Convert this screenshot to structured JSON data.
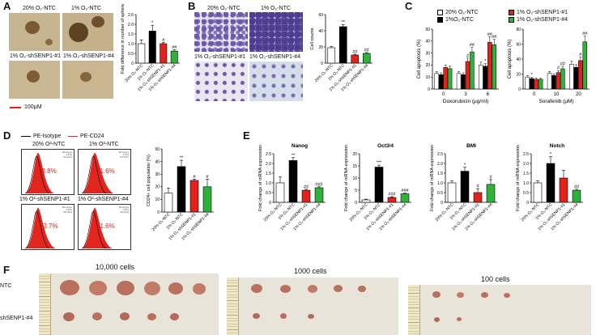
{
  "panels": {
    "A": {
      "letter": "A",
      "captions": [
        "20% O₂-NTC",
        "1% O₂-NTC",
        "1% O₂-shSENP1-#1",
        "1% O₂-shSENP1-#4"
      ],
      "scale_bar": "100μM"
    },
    "B": {
      "letter": "B",
      "captions": [
        "20% O₂-NTC",
        "1% O₂-NTC",
        "1% O₂-shSENP1-#1",
        "1% O₂-shSENP1-#4"
      ]
    },
    "C": {
      "letter": "C",
      "legend": [
        "20% O₂-NTC",
        "1%O₂-NTC",
        "1% O₂-shSENP1-#1",
        "1% O₂-shSENP1-#4"
      ]
    },
    "D": {
      "letter": "D",
      "legend": [
        "PE-Isotype",
        "PE-CD24"
      ],
      "captions": [
        "20% O²-NTC",
        "1% O²-NTC",
        "1% O²-shSENP1-#1",
        "1% O²-shSENP1-#4"
      ],
      "percentages": [
        "13.8%",
        "31.6%",
        "23.7%",
        "21.6%"
      ],
      "inset_text": [
        "PE-Isotype",
        "0.51%",
        "PE-CD24"
      ]
    },
    "E": {
      "letter": "E"
    },
    "F": {
      "letter": "F",
      "titles": [
        "10,000 cells",
        "1000 cells",
        "100 cells"
      ],
      "rows": [
        "NTC",
        "shSENP1-#4"
      ]
    }
  },
  "colors": {
    "ntc20": "#ffffff",
    "ntc1": "#000000",
    "sh1": "#e3231b",
    "sh4": "#2fb23a",
    "flow_fill": "#e0261f",
    "crystal_violet": "#6a5aa8",
    "tumor": "#b8715e"
  },
  "chart_data": [
    {
      "id": "A-bar",
      "type": "bar",
      "categories": [
        "20% O₂-NTC",
        "1% O₂-NTC",
        "1% O₂-shSENP1-#1",
        "1% O₂-shSENP1-#4"
      ],
      "values": [
        1.0,
        1.65,
        1.0,
        0.62
      ],
      "errors": [
        0.2,
        0.3,
        0.06,
        0.06
      ],
      "marks": [
        "",
        "*",
        "#",
        "##"
      ],
      "ylabel": "Fold difference in number of sphere",
      "ylim": [
        0,
        2.5
      ],
      "yticks": [
        0,
        0.5,
        1.0,
        1.5,
        2.0,
        2.5
      ]
    },
    {
      "id": "B-bar",
      "type": "bar",
      "categories": [
        "20% O₂-NTC",
        "1% O₂-NTC",
        "1% O₂-shSENP1-#1",
        "1% O₂-shSENP1-#4"
      ],
      "values": [
        19,
        45,
        10,
        12
      ],
      "errors": [
        1.5,
        2.5,
        1.0,
        1.0
      ],
      "marks": [
        "",
        "**",
        "##",
        "##"
      ],
      "ylabel": "Cell counts",
      "ylim": [
        0,
        60
      ],
      "yticks": [
        0,
        20,
        40,
        60
      ]
    },
    {
      "id": "C-dox",
      "type": "bar",
      "groups": [
        "0",
        "3",
        "6"
      ],
      "series": [
        {
          "name": "20% O₂-NTC",
          "values": [
            13,
            13,
            20
          ]
        },
        {
          "name": "1%O₂-NTC",
          "values": [
            12,
            12,
            19
          ]
        },
        {
          "name": "1% O₂-shSENP1-#1",
          "values": [
            18,
            23,
            39
          ]
        },
        {
          "name": "1% O₂-shSENP1-#4",
          "values": [
            17,
            31,
            37
          ]
        }
      ],
      "marks": [
        [
          "",
          "",
          "",
          ""
        ],
        [
          "",
          "",
          "#",
          "##"
        ],
        [
          "",
          "*",
          "##",
          "##"
        ]
      ],
      "xlabel": "Doxorubicin (μg/ml)",
      "ylabel": "Cell apoptosis (%)",
      "ylim": [
        0,
        50
      ],
      "yticks": [
        0,
        10,
        20,
        30,
        40,
        50
      ]
    },
    {
      "id": "C-sor",
      "type": "bar",
      "groups": [
        "0",
        "10",
        "20"
      ],
      "series": [
        {
          "name": "20% O₂-NTC",
          "values": [
            16,
            21,
            33
          ]
        },
        {
          "name": "1%O₂-NTC",
          "values": [
            14,
            18,
            29
          ]
        },
        {
          "name": "1% O₂-shSENP1-#1",
          "values": [
            13,
            22,
            38
          ]
        },
        {
          "name": "1% O₂-shSENP1-#4",
          "values": [
            13,
            27,
            63
          ]
        }
      ],
      "marks": [
        [
          "",
          "*",
          "",
          ""
        ],
        [
          "",
          "",
          "#",
          "##"
        ],
        [
          "",
          "",
          "#",
          "##"
        ]
      ],
      "xlabel": "Sorafenib (μM)",
      "ylabel": "Cell apoptosis (%)",
      "ylim": [
        0,
        80
      ],
      "yticks": [
        0,
        20,
        40,
        60,
        80
      ]
    },
    {
      "id": "D-bar",
      "type": "bar",
      "categories": [
        "20% O₂-NTC",
        "1% O₂-NTC",
        "1% O₂-shSENP1-#1",
        "1% O₂-shSENP1-#4"
      ],
      "values": [
        15,
        36,
        25,
        20
      ],
      "errors": [
        4,
        5,
        1,
        6
      ],
      "marks": [
        "",
        "**",
        "#",
        "#"
      ],
      "ylabel": "CD24+ cell population (%)",
      "ylim": [
        0,
        50
      ],
      "yticks": [
        0,
        10,
        20,
        30,
        40,
        50
      ]
    },
    {
      "id": "E-nanog",
      "type": "bar",
      "title": "Nanog",
      "categories": [
        "20% O₂-NTC",
        "1% O₂-NTC",
        "1% O₂-shSENP1-#1",
        "1% O₂-shSENP1-#4"
      ],
      "values": [
        1.0,
        2.15,
        0.62,
        0.75
      ],
      "errors": [
        0.3,
        0.15,
        0.05,
        0.05
      ],
      "marks": [
        "",
        "**",
        "##",
        "###"
      ],
      "ylabel": "Fold change of mRNA expression",
      "ylim": [
        0,
        2.5
      ],
      "yticks": [
        0,
        0.5,
        1.0,
        1.5,
        2.0,
        2.5
      ]
    },
    {
      "id": "E-oct",
      "type": "bar",
      "title": "Oct3/4",
      "categories": [
        "20% O₂-NTC",
        "1% O₂-NTC",
        "1% O₂-shSENP1-#1",
        "1% O₂-shSENP1-#4"
      ],
      "values": [
        1.0,
        14.5,
        2.0,
        3.5
      ],
      "errors": [
        0.3,
        0.8,
        0.3,
        0.3
      ],
      "marks": [
        "",
        "***",
        "###",
        "###"
      ],
      "ylabel": "Fold change of mRNA expression",
      "ylim": [
        0,
        20
      ],
      "yticks": [
        0,
        5,
        10,
        15,
        20
      ]
    },
    {
      "id": "E-bmi",
      "type": "bar",
      "title": "BMI",
      "categories": [
        "20% O₂-NTC",
        "1% O₂-NTC",
        "1% O₂-shSENP1-#1",
        "1% O₂-shSENP1-#4"
      ],
      "values": [
        1.0,
        1.6,
        0.5,
        0.92
      ],
      "errors": [
        0.1,
        0.2,
        0.2,
        0.25
      ],
      "marks": [
        "",
        "*",
        "#",
        "#"
      ],
      "ylabel": "Fold change of mRNA expression",
      "ylim": [
        0,
        2.5
      ],
      "yticks": [
        0,
        0.5,
        1.0,
        1.5,
        2.0,
        2.5
      ]
    },
    {
      "id": "E-notch",
      "type": "bar",
      "title": "Notch",
      "categories": [
        "20% O₂-NTC",
        "1% O₂-NTC",
        "1% O₂-shSENP1-#1",
        "1% O₂-shSENP1-#4"
      ],
      "values": [
        1.0,
        2.0,
        1.25,
        0.62
      ],
      "errors": [
        0.1,
        0.35,
        0.4,
        0.05
      ],
      "marks": [
        "",
        "*",
        "",
        "##"
      ],
      "ylabel": "Fold change of mRNA expression",
      "ylim": [
        0,
        2.5
      ],
      "yticks": [
        0,
        0.5,
        1.0,
        1.5,
        2.0,
        2.5
      ]
    }
  ]
}
